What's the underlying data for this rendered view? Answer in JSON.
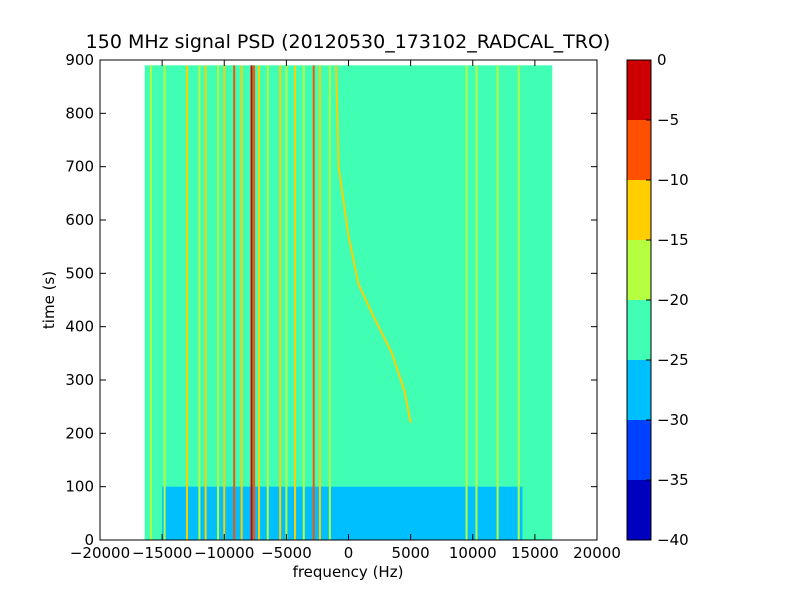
{
  "chart_data": {
    "type": "heatmap",
    "title": "150 MHz signal PSD (20120530_173102_RADCAL_TRO)",
    "xlabel": "frequency (Hz)",
    "ylabel": "time (s)",
    "xlim": [
      -20000,
      20000
    ],
    "ylim": [
      0,
      900
    ],
    "x_ticks": [
      "−20000",
      "−15000",
      "−10000",
      "−5000",
      "0",
      "5000",
      "10000",
      "15000",
      "20000"
    ],
    "x_tick_values": [
      -20000,
      -15000,
      -10000,
      -5000,
      0,
      5000,
      10000,
      15000,
      20000
    ],
    "y_ticks": [
      "0",
      "100",
      "200",
      "300",
      "400",
      "500",
      "600",
      "700",
      "800",
      "900"
    ],
    "y_tick_values": [
      0,
      100,
      200,
      300,
      400,
      500,
      600,
      700,
      800,
      900
    ],
    "data_extent": {
      "x": [
        -16400,
        16400
      ],
      "y": [
        0,
        890
      ]
    },
    "background_level": -22.5,
    "low_noise_region": {
      "x": [
        -15000,
        14000
      ],
      "y": [
        0,
        100
      ],
      "level": -27.5
    },
    "bands": [
      {
        "x": -15900,
        "level": -17.5
      },
      {
        "x": -14800,
        "level": -17.5
      },
      {
        "x": -13000,
        "level": -12.5
      },
      {
        "x": -12000,
        "level": -17.5
      },
      {
        "x": -11500,
        "level": -12.5
      },
      {
        "x": -10500,
        "level": -17.5
      },
      {
        "x": -10000,
        "level": -12.5
      },
      {
        "x": -9200,
        "level": -7.5
      },
      {
        "x": -8600,
        "level": -12.5
      },
      {
        "x": -7800,
        "level": -2.5
      },
      {
        "x": -7600,
        "level": -7.5
      },
      {
        "x": -7200,
        "level": -12.5
      },
      {
        "x": -6500,
        "level": -17.5
      },
      {
        "x": -5500,
        "level": -12.5
      },
      {
        "x": -5000,
        "level": -17.5
      },
      {
        "x": -4300,
        "level": -12.5
      },
      {
        "x": -3600,
        "level": -17.5
      },
      {
        "x": -2800,
        "level": -7.5
      },
      {
        "x": -2300,
        "level": -12.5
      },
      {
        "x": -1500,
        "level": -17.5
      },
      {
        "x": 9500,
        "level": -17.5
      },
      {
        "x": 10300,
        "level": -17.5
      },
      {
        "x": 12000,
        "level": -17.5
      },
      {
        "x": 13700,
        "level": -17.5
      }
    ],
    "drift_track": {
      "level": -12.5,
      "points": [
        [
          -1000,
          890
        ],
        [
          -800,
          700
        ],
        [
          0,
          570
        ],
        [
          800,
          480
        ],
        [
          2000,
          420
        ],
        [
          3500,
          350
        ],
        [
          4500,
          280
        ],
        [
          5000,
          220
        ]
      ]
    },
    "colorbar": {
      "ticks": [
        "0",
        "−5",
        "−10",
        "−15",
        "−20",
        "−25",
        "−30",
        "−35",
        "−40"
      ],
      "tick_values": [
        0,
        -5,
        -10,
        -15,
        -20,
        -25,
        -30,
        -35,
        -40
      ],
      "range": [
        -40,
        0
      ],
      "bins": [
        {
          "min": -40,
          "max": -35,
          "color": "#0000bf"
        },
        {
          "min": -35,
          "max": -30,
          "color": "#0040ff"
        },
        {
          "min": -30,
          "max": -25,
          "color": "#00bfff"
        },
        {
          "min": -25,
          "max": -20,
          "color": "#40ffb5"
        },
        {
          "min": -20,
          "max": -15,
          "color": "#b5ff40"
        },
        {
          "min": -15,
          "max": -10,
          "color": "#ffce00"
        },
        {
          "min": -10,
          "max": -5,
          "color": "#ff5000"
        },
        {
          "min": -5,
          "max": 0,
          "color": "#cc0000"
        }
      ]
    },
    "grid": false,
    "legend": "colorbar-right"
  }
}
